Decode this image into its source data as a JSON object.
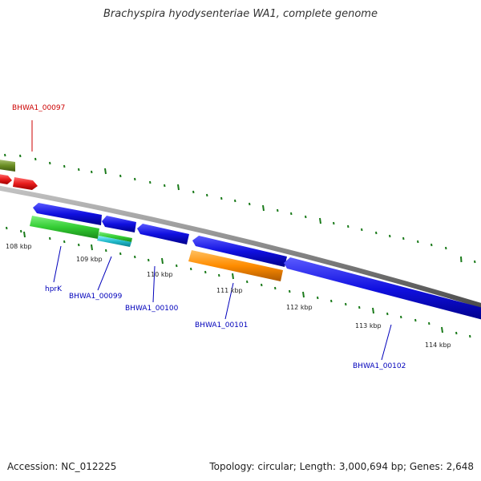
{
  "title": "Brachyspira hyodysenteriae WA1, complete genome",
  "footer": {
    "accession": "Accession: NC_012225",
    "topology": "Topology: circular; Length: 3,000,694 bp; Genes: 2,648"
  },
  "scale_labels": [
    "108 kbp",
    "109 kbp",
    "110 kbp",
    "111 kbp",
    "112 kbp",
    "113 kbp",
    "114 kbp"
  ],
  "gene_labels": [
    "BHWA1_00097",
    "hprK",
    "BHWA1_00099",
    "BHWA1_00100",
    "BHWA1_00101",
    "BHWA1_00102"
  ],
  "colors": {
    "backbone": "#8a8a8a",
    "ticks": "#1a7a1a",
    "forward_gene": "#e81c1c",
    "reverse_gene": "#1010e0",
    "rna_gene": "#33cc33",
    "misc_feature": "#ff8c00",
    "pseudo_feature": "#22bbcc",
    "other_feature": "#6b8e23",
    "forward_label": "#cc0000",
    "reverse_label": "#0000bb"
  }
}
